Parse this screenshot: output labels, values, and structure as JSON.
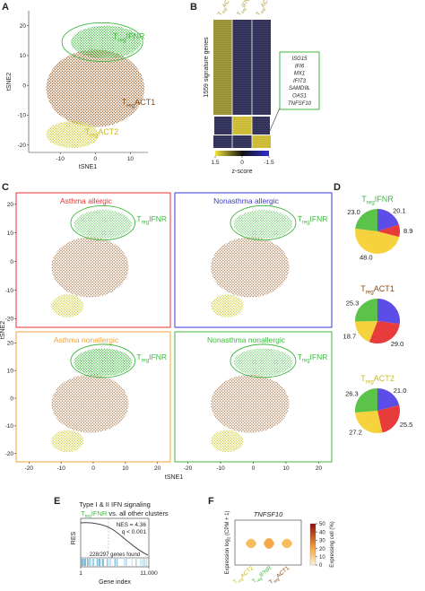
{
  "panel_labels": [
    "A",
    "B",
    "C",
    "D",
    "E",
    "F"
  ],
  "treg": {
    "prefix": "T",
    "sub": "reg"
  },
  "clusters": [
    "IFNR",
    "ACT1",
    "ACT2"
  ],
  "panel_a": {
    "xlabel": "tSNE1",
    "ylabel": "tSNE2",
    "xlim": [
      -19,
      15
    ],
    "ylim": [
      -22.5,
      25
    ],
    "xticks": [
      -10,
      0,
      10
    ],
    "yticks": [
      20,
      10,
      0,
      -10,
      -20
    ]
  },
  "panel_b": {
    "row_label": "1559 signature genes",
    "genes": [
      "ISG15",
      "IFI6",
      "MX1",
      "IFIT3",
      "SAMD9L",
      "OAS1",
      "TNFSF10"
    ],
    "colorbar": {
      "label": "z-score",
      "lim": [
        1.5,
        -1.5
      ],
      "ticks": [
        1.5,
        0,
        -1.5
      ]
    }
  },
  "panel_c": {
    "titles": [
      "Asthma allergic",
      "Nonasthma allergic",
      "Asthma nonallergic",
      "Nonasthma nonallergic"
    ],
    "xlabel": "tSNE1",
    "ylabel": "tSNE2",
    "xlim": [
      -24,
      24
    ],
    "ylim": [
      -23,
      24
    ],
    "xticks": [
      -20,
      -10,
      0,
      10,
      20
    ],
    "yticks": [
      20,
      10,
      0,
      -10,
      -20
    ]
  },
  "panel_d": {
    "colors": [
      "#5b4de6",
      "#e83b3b",
      "#f6d33e",
      "#5cc34a"
    ],
    "pies": [
      {
        "values": [
          20.1,
          8.9,
          48.0,
          23.0
        ],
        "value_labels": [
          "20.1",
          "8.9",
          "48.0",
          "23.0"
        ]
      },
      {
        "values": [
          27.0,
          29.0,
          18.7,
          25.3
        ],
        "value_labels": [
          null,
          "29.0",
          "18.7",
          "25.3"
        ]
      },
      {
        "values": [
          21.0,
          25.5,
          27.2,
          26.3
        ],
        "value_labels": [
          "21.0",
          "25.5",
          "27.2",
          "26.3"
        ]
      }
    ]
  },
  "panel_e": {
    "title": "Type I & II IFN signaling",
    "subtitle_rest": " vs. all other clusters",
    "stats": [
      "NES = 4.36",
      "q < 0.001"
    ],
    "found": "228/297 genes found",
    "ylabel": "RES",
    "xlabel": "Gene index",
    "xlim": [
      1,
      11000
    ],
    "xticks": [
      1,
      {
        "value": 11000,
        "label": "11,000"
      }
    ]
  },
  "panel_f": {
    "title": "TNFSF10",
    "ylabel": [
      "Expression log",
      "2",
      " (CPM + 1)"
    ],
    "colorbar": {
      "label": "Expressing cell (%)",
      "lim": [
        0,
        50
      ],
      "ticks": [
        0,
        10,
        20,
        30,
        40,
        50
      ]
    }
  }
}
